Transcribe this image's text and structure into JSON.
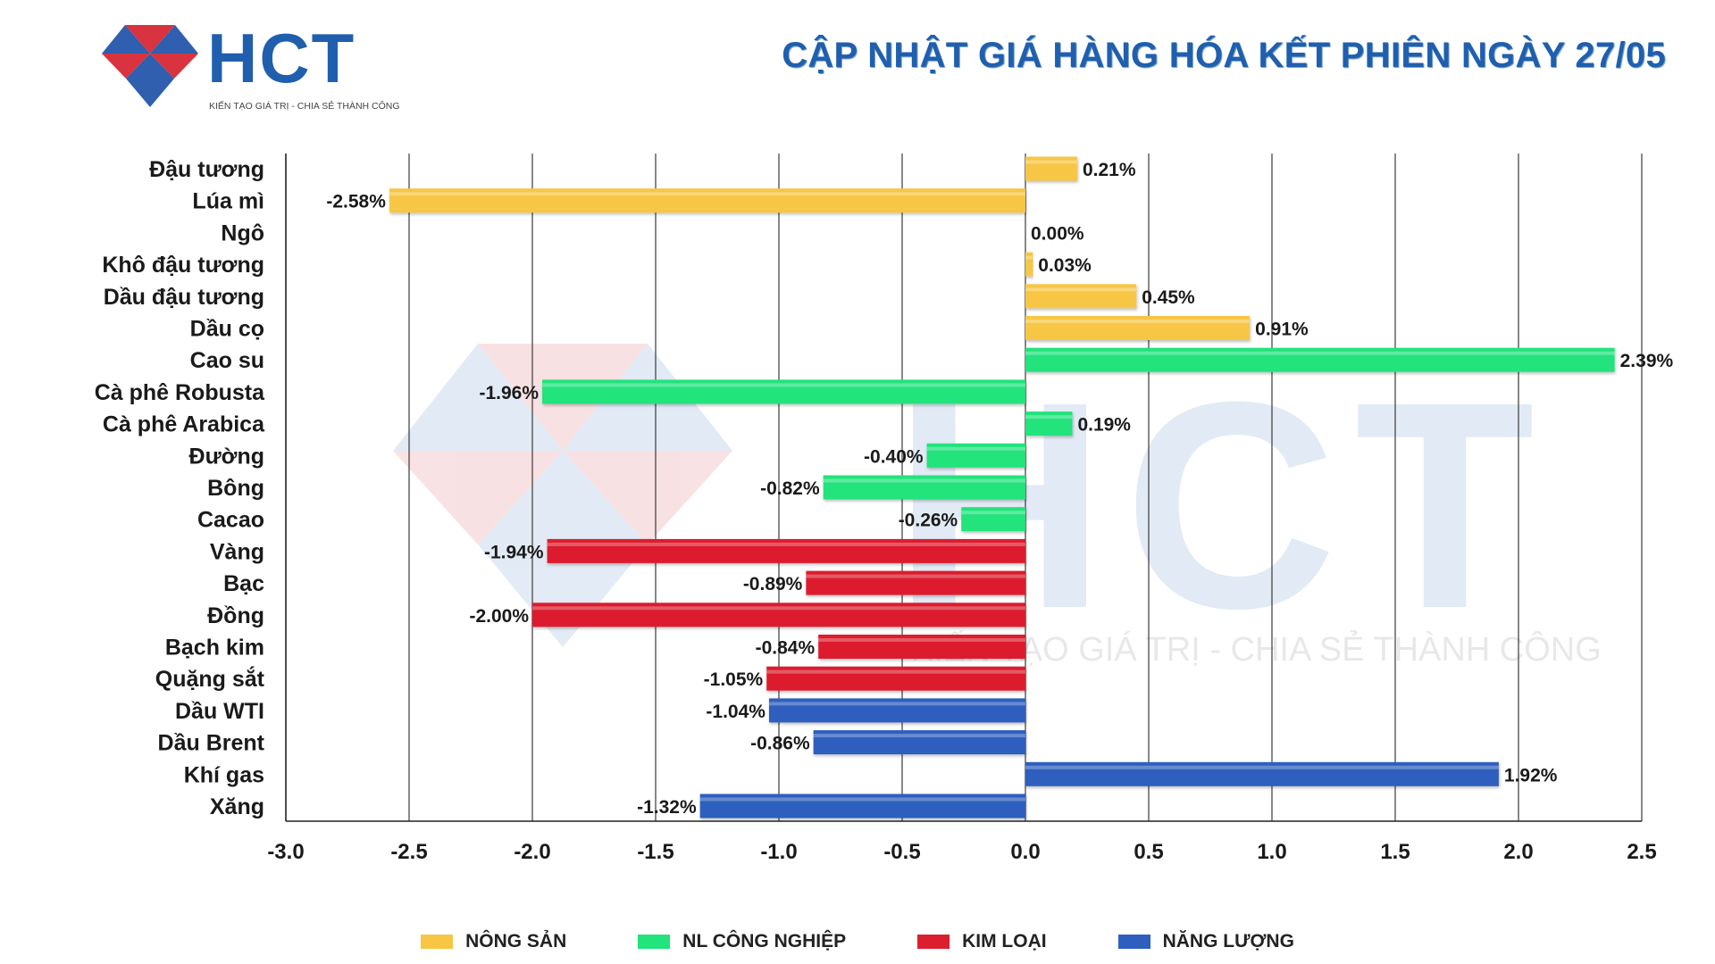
{
  "header": {
    "logo_text": "HCT",
    "logo_tagline": "KIẾN TẠO GIÁ TRỊ - CHIA SẺ THÀNH CÔNG",
    "title": "CẬP NHẬT GIÁ HÀNG HÓA KẾT PHIÊN NGÀY 27/05"
  },
  "watermark": {
    "text": "HCT",
    "tagline": "KIẾN TẠO GIÁ TRỊ - CHIA SẺ THÀNH CÔNG"
  },
  "colors": {
    "title": "#1f5fae",
    "nong_san": "#f7c645",
    "nl_cong_nghiep": "#22e37c",
    "kim_loai": "#dc1f2e",
    "nang_luong": "#2f5fbe"
  },
  "chart_data": {
    "type": "bar",
    "orientation": "horizontal",
    "title": "CẬP NHẬT GIÁ HÀNG HÓA KẾT PHIÊN NGÀY 27/05",
    "xlabel": "",
    "ylabel": "",
    "xlim": [
      -3.0,
      2.5
    ],
    "xticks": [
      -3.0,
      -2.5,
      -2.0,
      -1.5,
      -1.0,
      -0.5,
      0.0,
      0.5,
      1.0,
      1.5,
      2.0,
      2.5
    ],
    "xtick_labels": [
      "-3.0",
      "-2.5",
      "-2.0",
      "-1.5",
      "-1.0",
      "-0.5",
      "0.0",
      "0.5",
      "1.0",
      "1.5",
      "2.0",
      "2.5"
    ],
    "grid": "vertical",
    "legend_position": "bottom",
    "groups": [
      {
        "key": "nong_san",
        "name": "NÔNG SẢN",
        "color": "#f7c645"
      },
      {
        "key": "nl_cong_nghiep",
        "name": "NL CÔNG NGHIỆP",
        "color": "#22e37c"
      },
      {
        "key": "kim_loai",
        "name": "KIM LOẠI",
        "color": "#dc1f2e"
      },
      {
        "key": "nang_luong",
        "name": "NĂNG LƯỢNG",
        "color": "#2f5fbe"
      }
    ],
    "items": [
      {
        "name": "Đậu tương",
        "value": 0.21,
        "label": "0.21%",
        "group": "nong_san"
      },
      {
        "name": "Lúa mì",
        "value": -2.58,
        "label": "-2.58%",
        "group": "nong_san"
      },
      {
        "name": "Ngô",
        "value": 0.0,
        "label": "0.00%",
        "group": "nong_san"
      },
      {
        "name": "Khô đậu tương",
        "value": 0.03,
        "label": "0.03%",
        "group": "nong_san"
      },
      {
        "name": "Dầu đậu tương",
        "value": 0.45,
        "label": "0.45%",
        "group": "nong_san"
      },
      {
        "name": "Dầu cọ",
        "value": 0.91,
        "label": "0.91%",
        "group": "nong_san"
      },
      {
        "name": "Cao su",
        "value": 2.39,
        "label": "2.39%",
        "group": "nl_cong_nghiep"
      },
      {
        "name": "Cà phê Robusta",
        "value": -1.96,
        "label": "-1.96%",
        "group": "nl_cong_nghiep"
      },
      {
        "name": "Cà phê Arabica",
        "value": 0.19,
        "label": "0.19%",
        "group": "nl_cong_nghiep"
      },
      {
        "name": "Đường",
        "value": -0.4,
        "label": "-0.40%",
        "group": "nl_cong_nghiep"
      },
      {
        "name": "Bông",
        "value": -0.82,
        "label": "-0.82%",
        "group": "nl_cong_nghiep"
      },
      {
        "name": "Cacao",
        "value": -0.26,
        "label": "-0.26%",
        "group": "nl_cong_nghiep"
      },
      {
        "name": "Vàng",
        "value": -1.94,
        "label": "-1.94%",
        "group": "kim_loai"
      },
      {
        "name": "Bạc",
        "value": -0.89,
        "label": "-0.89%",
        "group": "kim_loai"
      },
      {
        "name": "Đồng",
        "value": -2.0,
        "label": "-2.00%",
        "group": "kim_loai"
      },
      {
        "name": "Bạch kim",
        "value": -0.84,
        "label": "-0.84%",
        "group": "kim_loai"
      },
      {
        "name": "Quặng sắt",
        "value": -1.05,
        "label": "-1.05%",
        "group": "kim_loai"
      },
      {
        "name": "Dầu WTI",
        "value": -1.04,
        "label": "-1.04%",
        "group": "nang_luong"
      },
      {
        "name": "Dầu Brent",
        "value": -0.86,
        "label": "-0.86%",
        "group": "nang_luong"
      },
      {
        "name": "Khí gas",
        "value": 1.92,
        "label": "1.92%",
        "group": "nang_luong"
      },
      {
        "name": "Xăng",
        "value": -1.32,
        "label": "-1.32%",
        "group": "nang_luong"
      }
    ]
  },
  "legend": {
    "items": [
      {
        "label": "NÔNG SẢN",
        "color": "#f7c645"
      },
      {
        "label": "NL CÔNG NGHIỆP",
        "color": "#22e37c"
      },
      {
        "label": "KIM LOẠI",
        "color": "#dc1f2e"
      },
      {
        "label": "NĂNG LƯỢNG",
        "color": "#2f5fbe"
      }
    ]
  }
}
